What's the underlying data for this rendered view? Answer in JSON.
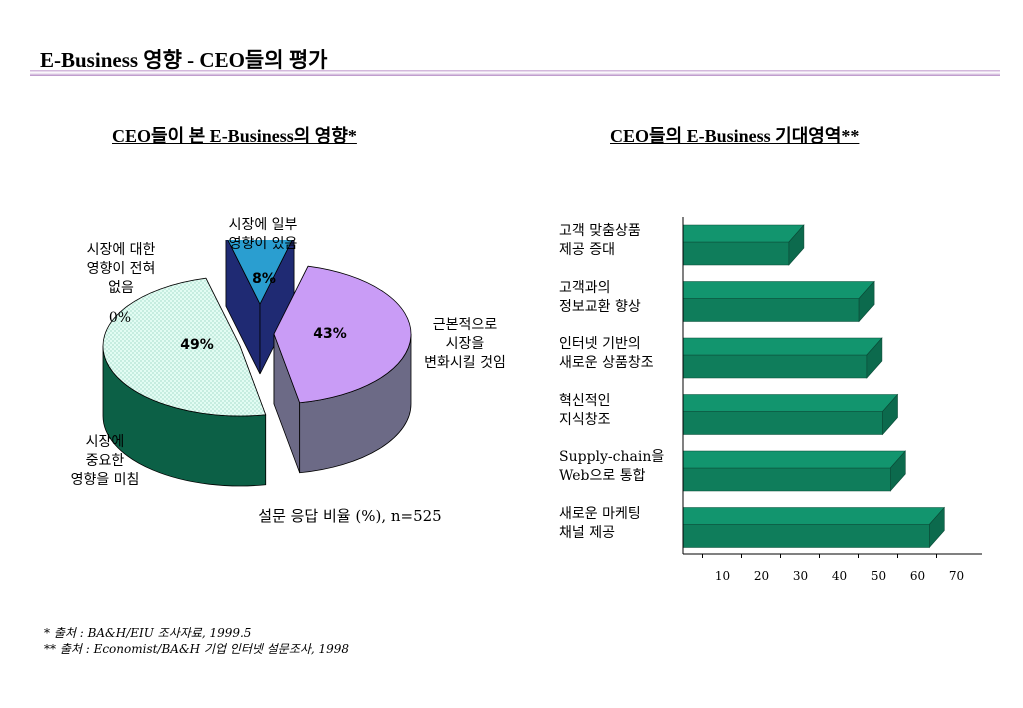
{
  "page_title": "E-Business 영향 - CEO들의 평가",
  "chart_data": [
    {
      "type": "pie",
      "title": "CEO들이 본 E-Business의 영향*",
      "slices": [
        {
          "label_lines": [
            "시장에 일부",
            "영향이 있음"
          ],
          "value": 8,
          "value_label": "8%",
          "color": "#2a9ed0"
        },
        {
          "label_lines": [
            "근본적으로",
            "시장을",
            "변화시킬 것임"
          ],
          "value": 43,
          "value_label": "43%",
          "color": "#c99cf6"
        },
        {
          "label_lines": [
            "시장에",
            "중요한",
            "영향을 미침"
          ],
          "value": 49,
          "value_label": "49%",
          "color": "#e0fbf2"
        },
        {
          "label_lines": [
            "시장에 대한",
            "영향이 전혀",
            "없음"
          ],
          "value": 0,
          "value_label": "0%",
          "color": "#cccccc"
        }
      ],
      "caption": "설문 응답 비율 (%), n=525"
    },
    {
      "type": "bar",
      "orientation": "horizontal",
      "title": "CEO들의 E-Business 기대영역**",
      "categories": [
        [
          "고객 맞춤상품",
          "제공 증대"
        ],
        [
          "고객과의",
          "정보교환 향상"
        ],
        [
          "인터넷 기반의",
          "새로운 상품창조"
        ],
        [
          "혁신적인",
          "지식창조"
        ],
        [
          "Supply-chain을",
          "Web으로 통합"
        ],
        [
          "새로운 마케팅",
          "채널 제공"
        ]
      ],
      "values": [
        31,
        49,
        51,
        55,
        57,
        67
      ],
      "xlim": [
        0,
        70
      ],
      "x_ticks": [
        10,
        20,
        30,
        40,
        50,
        60,
        70
      ],
      "bar_color": "#12956e"
    }
  ],
  "footnotes": [
    "*  출처 : BA&H/EIU 조사자료, 1999.5",
    "** 출처 : Economist/BA&H 기업 인터넷 설문조사, 1998"
  ]
}
